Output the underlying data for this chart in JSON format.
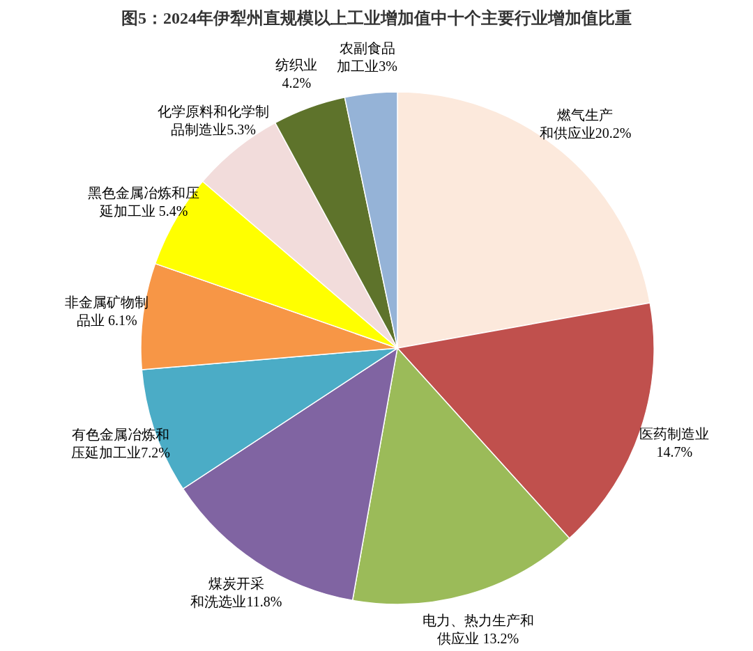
{
  "chart_data": {
    "type": "pie",
    "title": "图5：2024年伊犁州直规模以上工业增加值中十个主要行业增加值比重",
    "categories": [
      "燃气生产和供应业",
      "医药制造业",
      "电力、热力生产和供应业",
      "煤炭开采和洗选业",
      "有色金属冶炼和压延加工业",
      "非金属矿物制品业",
      "黑色金属冶炼和压延加工业",
      "化学原料和化学制品制造业",
      "纺织业",
      "农副食品加工业"
    ],
    "values": [
      20.2,
      14.7,
      13.2,
      11.8,
      7.2,
      6.1,
      5.4,
      5.3,
      4.2,
      3
    ],
    "value_labels": [
      "20.2%",
      "14.7%",
      " 13.2%",
      "11.8%",
      "7.2%",
      " 6.1%",
      " 5.4%",
      "5.3%",
      "4.2%",
      "3%"
    ],
    "colors": [
      "#fce9dc",
      "#c0504d",
      "#9bbb59",
      "#8064a2",
      "#4bacc6",
      "#f79646",
      "#ffff00",
      "#f2dcdb",
      "#5e732b",
      "#95b3d7"
    ]
  }
}
